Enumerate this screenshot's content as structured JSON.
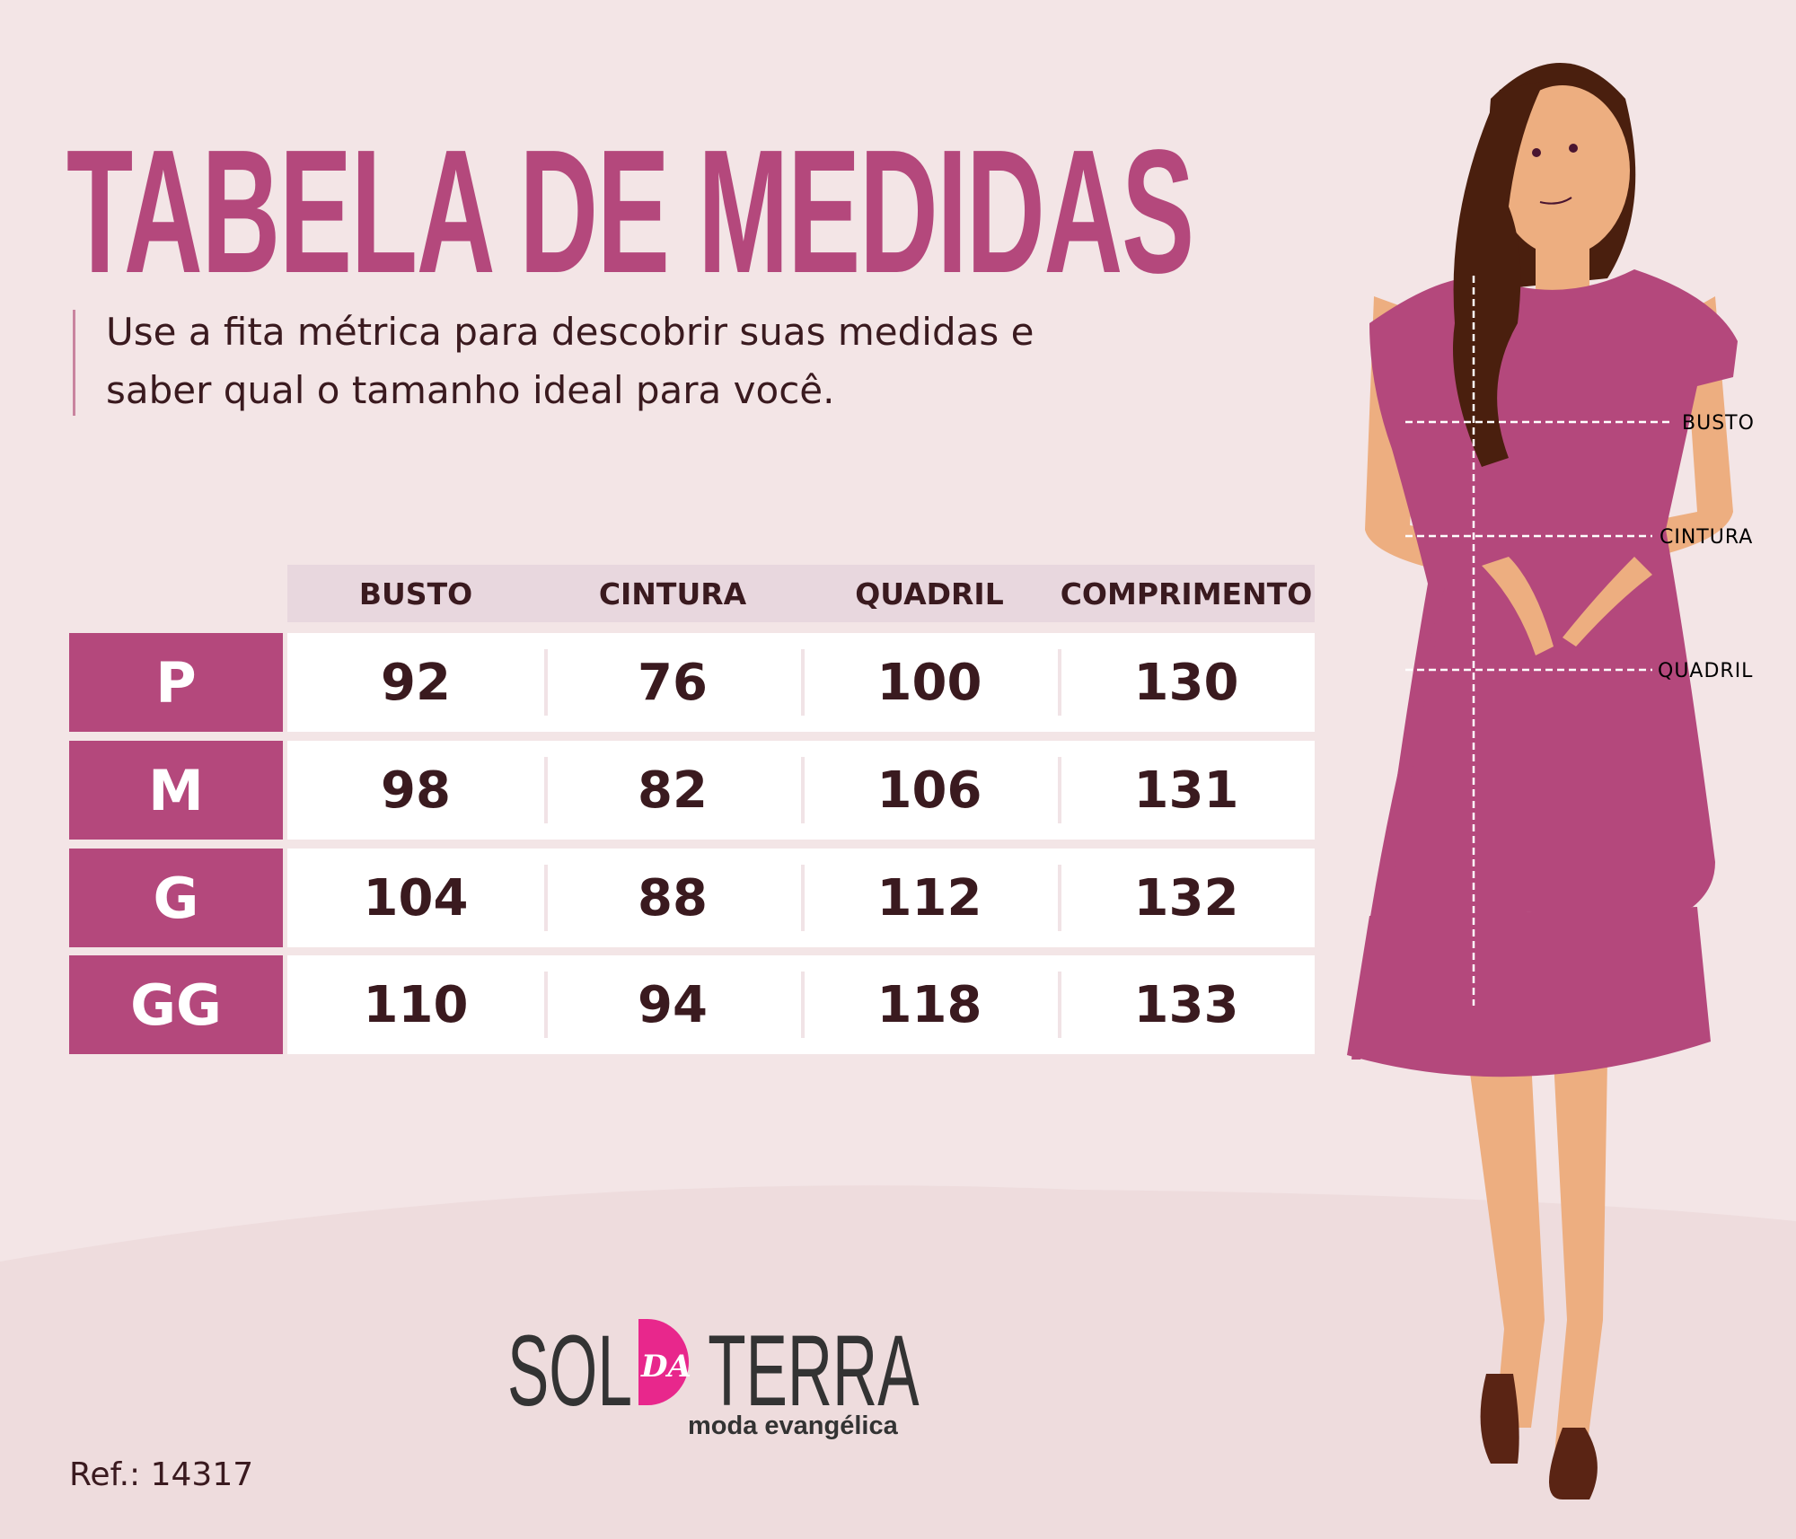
{
  "title": "TABELA DE MEDIDAS",
  "subtitle": [
    "Use a fita métrica para descobrir suas medidas e",
    "saber qual o tamanho ideal para você."
  ],
  "table": {
    "headers": [
      "BUSTO",
      "CINTURA",
      "QUADRIL",
      "COMPRIMENTO"
    ],
    "rows": [
      {
        "size": "P",
        "values": [
          "92",
          "76",
          "100",
          "130"
        ]
      },
      {
        "size": "M",
        "values": [
          "98",
          "82",
          "106",
          "131"
        ]
      },
      {
        "size": "G",
        "values": [
          "104",
          "88",
          "112",
          "132"
        ]
      },
      {
        "size": "GG",
        "values": [
          "110",
          "94",
          "118",
          "133"
        ]
      }
    ]
  },
  "illustration": {
    "labels": [
      "BUSTO",
      "CINTURA",
      "QUADRIL"
    ]
  },
  "logo": {
    "part1": "SOL",
    "part2": "DA",
    "part3": "TERRA",
    "tagline": "moda evangélica"
  },
  "ref": "Ref.:  14317",
  "colors": {
    "accent": "#b4487c",
    "text": "#3a1a1f",
    "background": "#f3e5e6",
    "logo_pink": "#e8278c"
  }
}
